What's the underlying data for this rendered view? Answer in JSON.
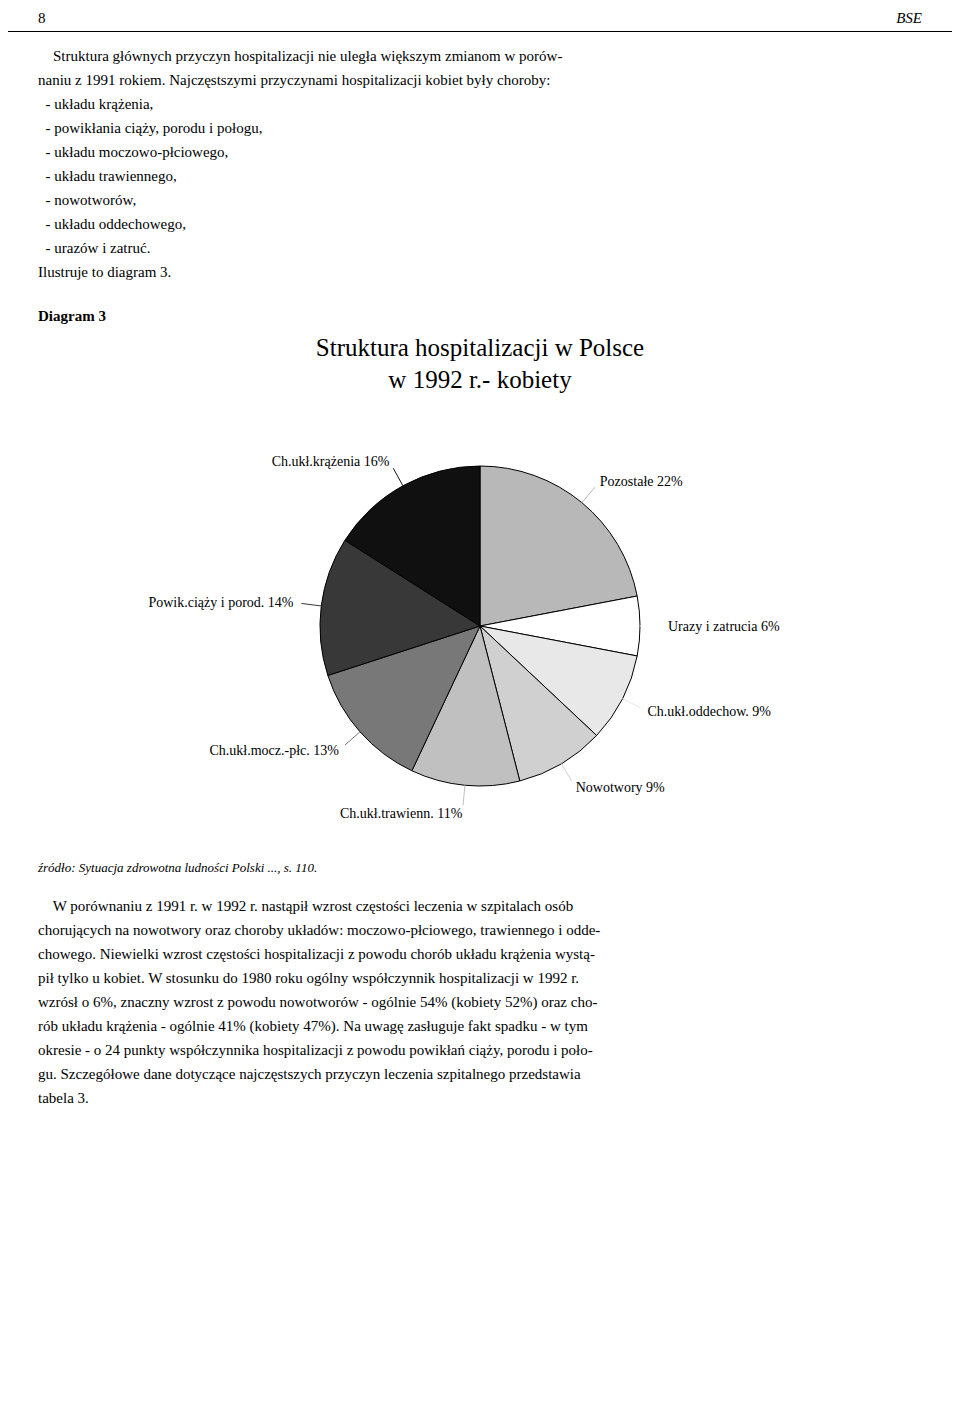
{
  "chart_data": {
    "type": "pie",
    "title": "Struktura hospitalizacji w Polsce",
    "subtitle": "w 1992 r.- kobiety",
    "categories": [
      "Pozostałe 22%",
      "Urazy i zatrucia 6%",
      "Ch.ukł.oddechow. 9%",
      "Nowotwory 9%",
      "Ch.ukł.trawienn. 11%",
      "Ch.ukł.mocz.-płc. 13%",
      "Powik.ciąży i porod. 14%",
      "Ch.ukł.krążenia 16%"
    ],
    "values": [
      22,
      6,
      9,
      9,
      11,
      13,
      14,
      16
    ],
    "colors": [
      "#b8b8b8",
      "#ffffff",
      "#e8e8e8",
      "#d0d0d0",
      "#c0c0c0",
      "#787878",
      "#383838",
      "#101010"
    ],
    "annotations": [
      "8",
      "BSE",
      "Diagram 3",
      "    Struktura głównych przyczyn hospitalizacji nie uległa większym zmianom w porów-",
      "naniu z 1991 rokiem. Najczęstszymi przyczynami hospitalizacji kobiet były choroby:",
      "  - układu krążenia,",
      "  - powikłania ciąży, porodu i połogu,",
      "  - układu moczowo-płciowego,",
      "  - układu trawiennego,",
      "  - nowotworów,",
      "  - układu oddechowego,",
      "  - urazów i zatruć.",
      "Ilustruje to diagram 3.",
      "źródło: Sytuacja zdrowotna ludności Polski ..., s. 110.",
      "    W porównaniu z 1991 r. w 1992 r. nastąpił wzrost częstości leczenia w szpitalach osób",
      "chorujących na nowotwory oraz choroby układów: moczowo-płciowego, trawiennego i odde-",
      "chowego. Niewielki wzrost częstości hospitalizacji z powodu chorób układu krążenia wystą-",
      "pił tylko u kobiet. W stosunku do 1980 roku ogólny współczynnik hospitalizacji w 1992 r.",
      "wzrósł o 6%, znaczny wzrost z powodu nowotworów - ogólnie 54% (kobiety 52%) oraz cho-",
      "rób układu krążenia - ogólnie 41% (kobiety 47%). Na uwagę zasługuje fakt spadku - w tym",
      "okresie - o 24 punkty współczynnika hospitalizacji z powodu powikłań ciąży, porodu i poło-",
      "gu. Szczegółowe dane dotyczące najczęstszych przyczyn leczenia szpitalnego przedstawia",
      "tabela 3."
    ]
  }
}
